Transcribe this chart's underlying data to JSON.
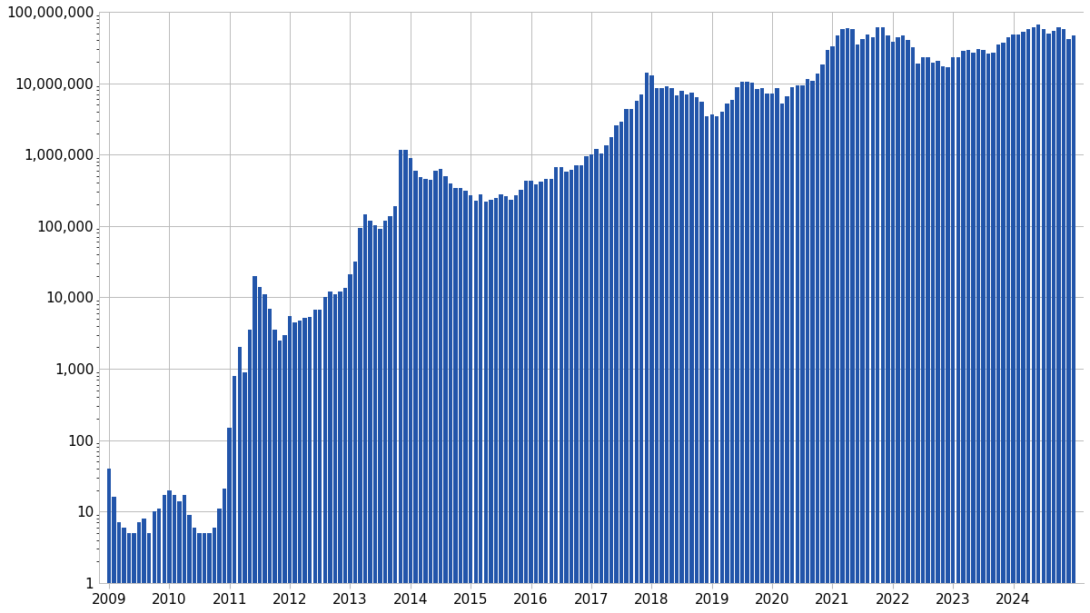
{
  "bar_color": "#2255aa",
  "background_color": "#ffffff",
  "yticks": [
    1,
    10,
    100,
    1000,
    10000,
    100000,
    1000000,
    10000000,
    100000000
  ],
  "ytick_labels": [
    "1",
    "10",
    "100",
    "1,000",
    "10,000",
    "100,000",
    "1,000,000",
    "10,000,000",
    "100,000,000"
  ],
  "monthly_prices": [
    40,
    16,
    7,
    6,
    5,
    5,
    7,
    8,
    5,
    10,
    11,
    17,
    20,
    17,
    14,
    17,
    9,
    6,
    5,
    5,
    5,
    6,
    11,
    21,
    150,
    800,
    2000,
    900,
    3500,
    20000,
    14000,
    11000,
    7000,
    3500,
    2500,
    3000,
    5500,
    4500,
    4800,
    5200,
    5300,
    6800,
    6800,
    10000,
    12000,
    11000,
    12000,
    13500,
    21000,
    32000,
    93000,
    144000,
    120000,
    102000,
    92000,
    120000,
    138000,
    192000,
    1150000,
    1150000,
    900000,
    600000,
    480000,
    450000,
    445000,
    600000,
    625000,
    500000,
    390000,
    340000,
    340000,
    310000,
    270000,
    225000,
    275000,
    220000,
    235000,
    245000,
    280000,
    265000,
    235000,
    270000,
    325000,
    430000,
    435000,
    380000,
    415000,
    450000,
    450000,
    675000,
    660000,
    575000,
    610000,
    700000,
    700000,
    950000,
    1000000,
    1190000,
    1050000,
    1340000,
    1750000,
    2550000,
    2870000,
    4400000,
    4350000,
    5600000,
    7000000,
    14000000,
    13000000,
    8500000,
    8500000,
    9000000,
    8500000,
    6700000,
    7700000,
    7000000,
    7300000,
    6400000,
    5500000,
    3400000,
    3700000,
    3450000,
    3970000,
    5200000,
    5800000,
    8700000,
    10500000,
    10600000,
    10300000,
    8200000,
    8600000,
    7200000,
    7200000,
    8600000,
    5200000,
    6650000,
    8800000,
    9450000,
    9200000,
    11600000,
    10750000,
    13800000,
    18100000,
    28900000,
    33000000,
    46000000,
    58000000,
    59000000,
    57000000,
    35000000,
    41400000,
    48000000,
    43800000,
    60000000,
    61300000,
    46200000,
    38500000,
    44000000,
    47000000,
    40000000,
    31700000,
    19000000,
    23300000,
    23000000,
    19500000,
    20500000,
    17000000,
    16500000,
    23000000,
    23400000,
    28000000,
    29200000,
    27000000,
    30400000,
    29200000,
    26000000,
    26900000,
    34400000,
    37000000,
    44000000,
    48000000,
    48000000,
    52000000,
    57000000,
    61000000,
    67000000,
    58000000,
    49000000,
    54000000,
    60000000,
    58000000,
    42000000,
    47000000
  ],
  "year_labels": [
    "2009",
    "2010",
    "2011",
    "2012",
    "2013",
    "2014",
    "2015",
    "2016",
    "2017",
    "2018",
    "2019",
    "2020",
    "2021",
    "2022",
    "2023",
    "2024"
  ],
  "xlim_left": -2,
  "figsize": [
    12.0,
    6.75
  ],
  "dpi": 100
}
